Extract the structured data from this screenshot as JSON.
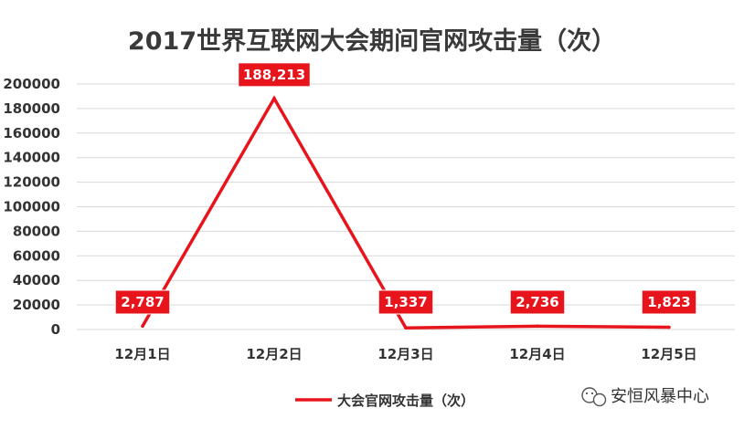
{
  "chart_data": {
    "type": "line",
    "title": "2017世界互联网大会期间官网攻击量（次）",
    "categories": [
      "12月1日",
      "12月2日",
      "12月3日",
      "12月4日",
      "12月5日"
    ],
    "series": [
      {
        "name": "大会官网攻击量（次）",
        "values": [
          2787,
          188213,
          1337,
          2736,
          1823
        ]
      }
    ],
    "data_labels": [
      "2,787",
      "188,213",
      "1,337",
      "2,736",
      "1,823"
    ],
    "y_ticks": [
      "0",
      "20000",
      "40000",
      "60000",
      "80000",
      "100000",
      "120000",
      "140000",
      "160000",
      "180000",
      "200000"
    ],
    "ylim": [
      0,
      200000
    ],
    "grid": true,
    "legend_position": "bottom-center",
    "line_color": "#e8141c",
    "label_bg_color": "#e8141c"
  },
  "watermark": "安恒风暴中心"
}
